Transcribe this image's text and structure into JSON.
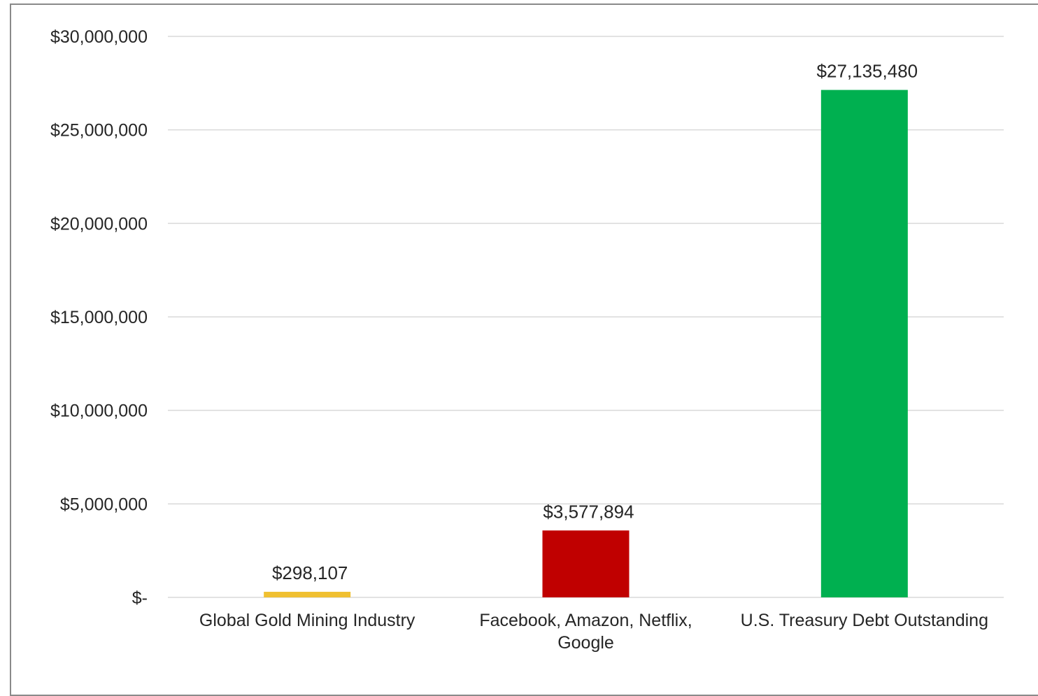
{
  "chart_data": {
    "type": "bar",
    "title": "",
    "xlabel": "",
    "ylabel": "",
    "categories": [
      [
        "Global Gold Mining Industry"
      ],
      [
        "Facebook, Amazon, Netflix,",
        "Google"
      ],
      [
        "U.S. Treasury Debt Outstanding"
      ]
    ],
    "values": [
      298107,
      3577894,
      27135480
    ],
    "data_labels": [
      "$298,107",
      "$3,577,894",
      "$27,135,480"
    ],
    "bar_colors": [
      "#f0c030",
      "#c00000",
      "#00b050"
    ],
    "ylim": [
      0,
      30000000
    ],
    "yticks": [
      0,
      5000000,
      10000000,
      15000000,
      20000000,
      25000000,
      30000000
    ],
    "ytick_labels": [
      "$-",
      "$5,000,000",
      "$10,000,000",
      "$15,000,000",
      "$20,000,000",
      "$25,000,000",
      "$30,000,000"
    ],
    "grid": true,
    "gridline_color": "#d9d9d9",
    "legend": "none"
  }
}
